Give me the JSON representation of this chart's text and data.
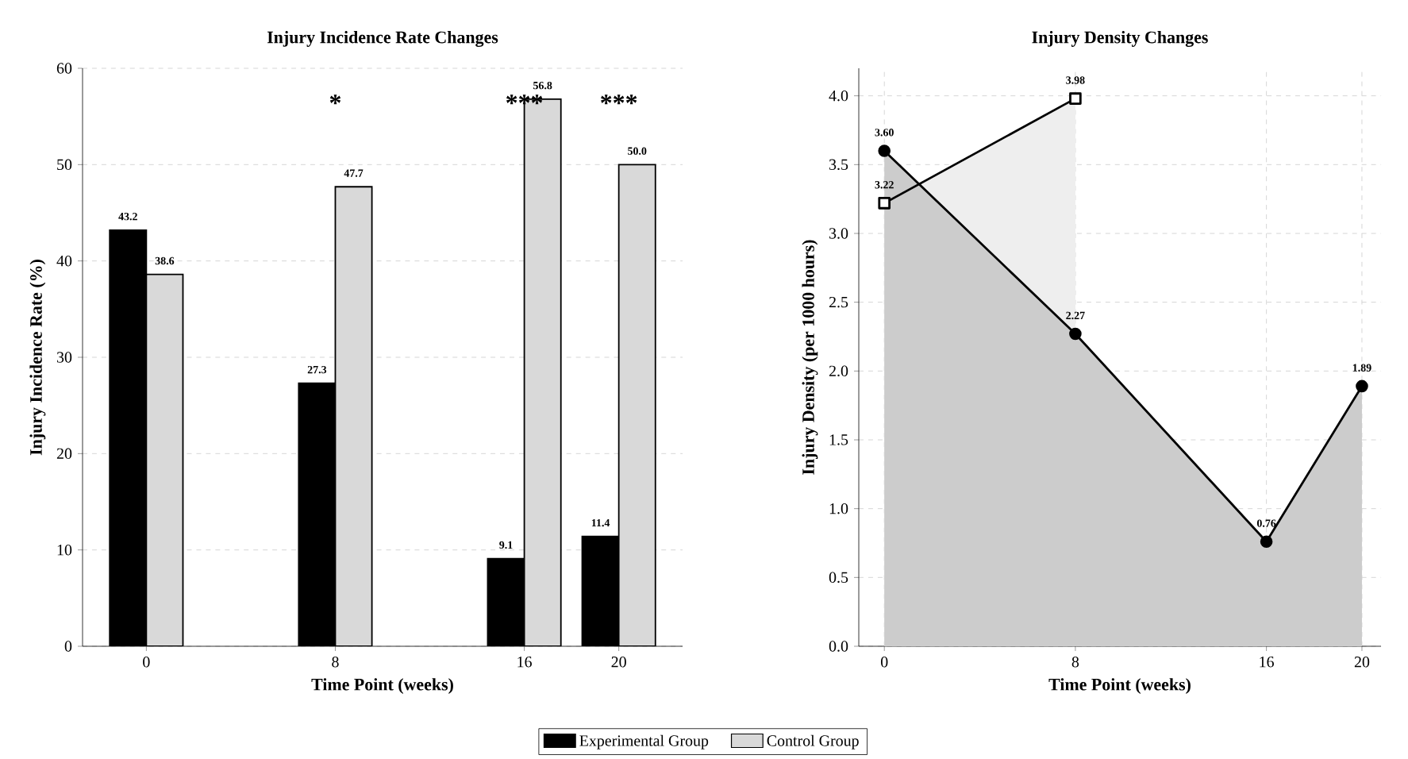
{
  "chart_data": [
    {
      "type": "bar",
      "title": "Injury Incidence Rate Changes",
      "xlabel": "Time Point (weeks)",
      "ylabel": "Injury Incidence Rate (%)",
      "x": [
        0,
        8,
        16,
        20
      ],
      "xlim": [
        -2.7,
        22.7
      ],
      "xticks": [
        0,
        8,
        16,
        20
      ],
      "ylim": [
        0,
        60
      ],
      "yticks": [
        0,
        10,
        20,
        30,
        40,
        50,
        60
      ],
      "grid": "y",
      "legend": "bottom",
      "series": [
        {
          "name": "Experimental Group",
          "color": "#000000",
          "values": [
            43.2,
            27.3,
            9.1,
            11.4
          ],
          "value_labels": [
            "43.2",
            "27.3",
            "9.1",
            "11.4"
          ]
        },
        {
          "name": "Control Group",
          "color": "#d9d9d9",
          "values": [
            38.6,
            47.7,
            56.8,
            50.0
          ],
          "value_labels": [
            "38.6",
            "47.7",
            "56.8",
            "50.0"
          ]
        }
      ],
      "annotations": [
        "*",
        "***",
        "***"
      ]
    },
    {
      "type": "area",
      "title": "Injury Density Changes",
      "xlabel": "Time Point (weeks)",
      "ylabel": "Injury Density (per 1000 hours)",
      "x": [
        0,
        8,
        16,
        20
      ],
      "xlim": [
        -1.07,
        20.8
      ],
      "xticks": [
        0,
        8,
        16,
        20
      ],
      "ylim": [
        0,
        4.2
      ],
      "yticks": [
        {
          "value": 0,
          "label": "0.0"
        },
        0.5,
        {
          "value": 1,
          "label": "1.0"
        },
        1.5,
        {
          "value": 2,
          "label": "2.0"
        },
        2.5,
        {
          "value": 3,
          "label": "3.0"
        },
        3.5,
        {
          "value": 4,
          "label": "4.0"
        }
      ],
      "grid": true,
      "series": [
        {
          "color": "#eeeeee",
          "marker": "square",
          "values": [
            3.22,
            3.98,
            null,
            null
          ],
          "value_labels": [
            "3.22",
            "3.98",
            null,
            null
          ]
        },
        {
          "color": "#cccccc",
          "marker": "circle",
          "values": [
            3.6,
            2.27,
            0.76,
            1.89
          ],
          "value_labels": [
            "3.60",
            "2.27",
            "0.76",
            "1.89"
          ]
        }
      ]
    }
  ]
}
